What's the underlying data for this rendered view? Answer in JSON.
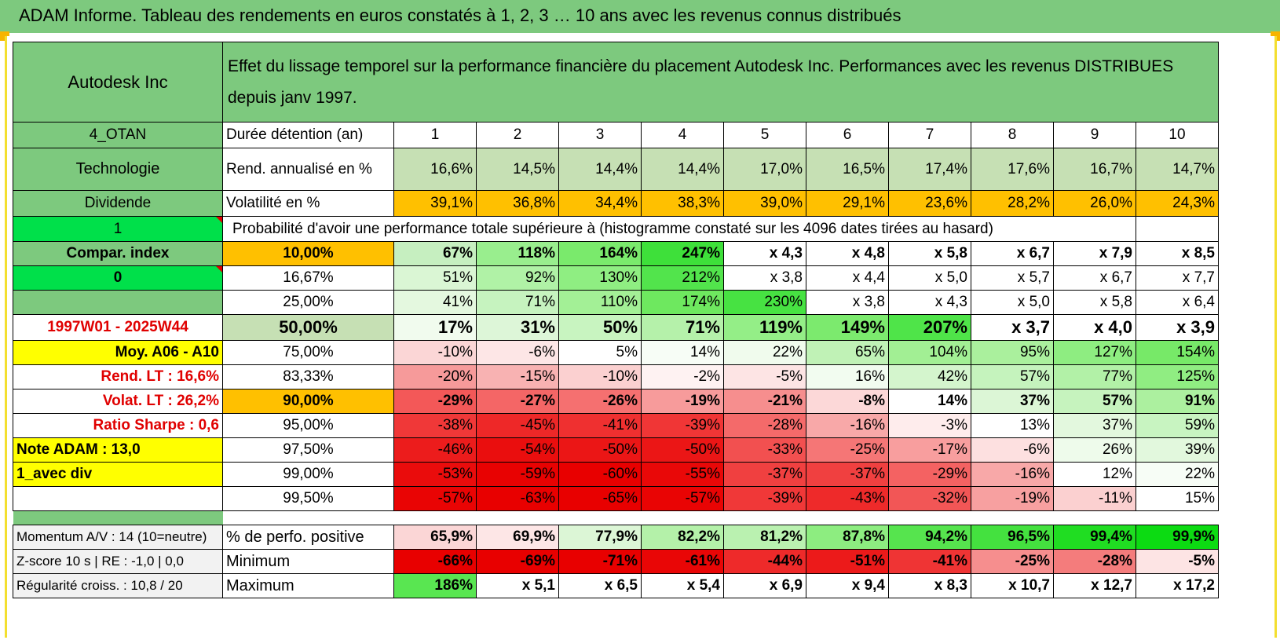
{
  "page_title": "ADAM Informe. Tableau des rendements en euros constatés à 1, 2, 3 … 10 ans avec les revenus connus distribués",
  "company": "Autodesk Inc",
  "header_description": "Effet du lissage temporel sur la performance financière du placement Autodesk Inc. Performances avec les revenus DISTRIBUES depuis janv 1997.",
  "left_labels": {
    "code": "4_OTAN",
    "sector": "Technologie",
    "dividend": "Dividende",
    "flag1": "1",
    "compar_index": "Compar. index",
    "flag0": "0",
    "period": "1997W01 - 2025W44",
    "moy": "Moy. A06 - A10",
    "rend_lt": "Rend. LT :    16,6%",
    "volat_lt": "Volat. LT :    26,2%",
    "sharpe": "Ratio Sharpe :    0,6",
    "note": "Note ADAM : 13,0",
    "avec_div": "1_avec div"
  },
  "columns_header": "Durée détention (an)",
  "years": [
    "1",
    "2",
    "3",
    "4",
    "5",
    "6",
    "7",
    "8",
    "9",
    "10"
  ],
  "rend_label": "Rend. annualisé en %",
  "rend_values": [
    "16,6%",
    "14,5%",
    "14,4%",
    "14,4%",
    "17,0%",
    "16,5%",
    "17,4%",
    "17,6%",
    "16,7%",
    "14,7%"
  ],
  "vol_label": "Volatilité en %",
  "vol_values": [
    "39,1%",
    "36,8%",
    "34,4%",
    "38,3%",
    "39,0%",
    "29,1%",
    "23,6%",
    "28,2%",
    "26,0%",
    "24,3%"
  ],
  "prob_title": "Probabilité d'avoir une performance totale supérieure à (histogramme constaté sur les 4096 dates tirées au hasard)",
  "prob_rows": [
    {
      "p": "10,00%",
      "v": [
        "67%",
        "118%",
        "164%",
        "247%",
        "x 4,3",
        "x 4,8",
        "x 5,8",
        "x 6,7",
        "x 7,9",
        "x 8,5"
      ],
      "c": [
        "#c6efc0",
        "#99ee8e",
        "#7aea6c",
        "#3ee03a",
        "#fff",
        "#fff",
        "#fff",
        "#fff",
        "#fff",
        "#fff"
      ]
    },
    {
      "p": "16,67%",
      "v": [
        "51%",
        "92%",
        "130%",
        "212%",
        "x 3,8",
        "x 4,4",
        "x 5,0",
        "x 5,7",
        "x 6,7",
        "x 7,7"
      ],
      "c": [
        "#daf6d4",
        "#b0f2a6",
        "#8fee82",
        "#52e44c",
        "#fff",
        "#fff",
        "#fff",
        "#fff",
        "#fff",
        "#fff"
      ]
    },
    {
      "p": "25,00%",
      "v": [
        "41%",
        "71%",
        "110%",
        "174%",
        "230%",
        "x 3,8",
        "x 4,3",
        "x 5,0",
        "x 5,8",
        "x 6,4"
      ],
      "c": [
        "#e4f8df",
        "#c6f3bf",
        "#a3f096",
        "#6ee85f",
        "#47e242",
        "#fff",
        "#fff",
        "#fff",
        "#fff",
        "#fff"
      ]
    },
    {
      "p": "50,00%",
      "v": [
        "17%",
        "31%",
        "50%",
        "71%",
        "119%",
        "149%",
        "207%",
        "x 3,7",
        "x 4,0",
        "x 3,9"
      ],
      "c": [
        "#f1fbee",
        "#ddf6d8",
        "#c8f4c0",
        "#b5f1aa",
        "#94ee87",
        "#7cea6e",
        "#4fe449",
        "#fff",
        "#fff",
        "#fff"
      ]
    },
    {
      "p": "75,00%",
      "v": [
        "-10%",
        "-6%",
        "5%",
        "14%",
        "22%",
        "65%",
        "104%",
        "95%",
        "127%",
        "154%"
      ],
      "c": [
        "#fbd6d6",
        "#fde6e6",
        "#fff",
        "#f7fdf6",
        "#f0fbed",
        "#c0f2b6",
        "#a2ef94",
        "#aaf09d",
        "#8eed81",
        "#77e968"
      ]
    },
    {
      "p": "83,33%",
      "v": [
        "-20%",
        "-15%",
        "-10%",
        "-2%",
        "-5%",
        "16%",
        "42%",
        "57%",
        "77%",
        "125%"
      ],
      "c": [
        "#f69a9a",
        "#f8b2b2",
        "#fbd0d0",
        "#fef2f2",
        "#fde4e4",
        "#f2fcf0",
        "#d4f5cd",
        "#c5f3bd",
        "#b2f1a7",
        "#90ed82"
      ]
    },
    {
      "p": "90,00%",
      "v": [
        "-29%",
        "-27%",
        "-26%",
        "-19%",
        "-21%",
        "-8%",
        "14%",
        "37%",
        "57%",
        "91%"
      ],
      "c": [
        "#f35858",
        "#f46666",
        "#f57070",
        "#f79b9b",
        "#f68e8e",
        "#fcd8d8",
        "#fff",
        "#dcf6d6",
        "#c6f3be",
        "#acf09f"
      ]
    },
    {
      "p": "95,00%",
      "v": [
        "-38%",
        "-45%",
        "-41%",
        "-39%",
        "-28%",
        "-16%",
        "-3%",
        "13%",
        "37%",
        "59%"
      ],
      "c": [
        "#f03838",
        "#ee2828",
        "#ef3030",
        "#f03636",
        "#f46a6a",
        "#f8a8a8",
        "#feecec",
        "#fff",
        "#e3f8de",
        "#c8f4c1"
      ]
    },
    {
      "p": "97,50%",
      "v": [
        "-46%",
        "-54%",
        "-50%",
        "-50%",
        "-33%",
        "-25%",
        "-17%",
        "-6%",
        "26%",
        "39%"
      ],
      "c": [
        "#ec1c1c",
        "#ea0e0e",
        "#eb1616",
        "#eb1616",
        "#f25050",
        "#f57676",
        "#f89e9e",
        "#fde0e0",
        "#eefbeb",
        "#e2f8dd"
      ]
    },
    {
      "p": "99,00%",
      "v": [
        "-53%",
        "-59%",
        "-60%",
        "-55%",
        "-37%",
        "-37%",
        "-29%",
        "-16%",
        "12%",
        "22%"
      ],
      "c": [
        "#ea0c0c",
        "#e80202",
        "#e80000",
        "#e90808",
        "#f04040",
        "#f04040",
        "#f46262",
        "#f8a8a8",
        "#fff",
        "#f7fdf6"
      ]
    },
    {
      "p": "99,50%",
      "v": [
        "-57%",
        "-63%",
        "-65%",
        "-57%",
        "-39%",
        "-43%",
        "-32%",
        "-19%",
        "-11%",
        "15%"
      ],
      "c": [
        "#e90404",
        "#e80000",
        "#e80000",
        "#e90404",
        "#f03838",
        "#ee2a2a",
        "#f25656",
        "#f7a0a0",
        "#fbd0d0",
        "#fff"
      ]
    }
  ],
  "footer_rows": [
    {
      "left": "Momentum A/V : 14 (10=neutre)",
      "label": "% de perfo. positive",
      "v": [
        "65,9%",
        "69,9%",
        "77,9%",
        "82,2%",
        "81,2%",
        "87,8%",
        "94,2%",
        "96,5%",
        "99,4%",
        "99,9%"
      ],
      "c": [
        "#fbd6d6",
        "#fde6e6",
        "#dcf6d6",
        "#b4f1a9",
        "#baf1b0",
        "#8ded80",
        "#56e44e",
        "#44e13f",
        "#20dd22",
        "#0cdb12"
      ]
    },
    {
      "left": "Z-score 10 s | RE : -1,0 | 0,0",
      "label": "Minimum",
      "v": [
        "-66%",
        "-69%",
        "-71%",
        "-61%",
        "-44%",
        "-51%",
        "-41%",
        "-25%",
        "-28%",
        "-5%"
      ],
      "c": [
        "#e80000",
        "#e80000",
        "#e80000",
        "#e90606",
        "#ee2a2a",
        "#ec1a1a",
        "#ef3434",
        "#f68e8e",
        "#f47c7c",
        "#fde4e4"
      ]
    },
    {
      "left": "Régularité croiss. : 10,8 / 20",
      "label": "Maximum",
      "v": [
        "186%",
        "x 5,1",
        "x 6,5",
        "x 5,4",
        "x 6,9",
        "x 9,4",
        "x 8,3",
        "x 10,7",
        "x 12,7",
        "x 17,2"
      ],
      "c": [
        "#59e651",
        "#fff",
        "#fff",
        "#fff",
        "#fff",
        "#fff",
        "#fff",
        "#fff",
        "#fff",
        "#fff"
      ]
    }
  ]
}
